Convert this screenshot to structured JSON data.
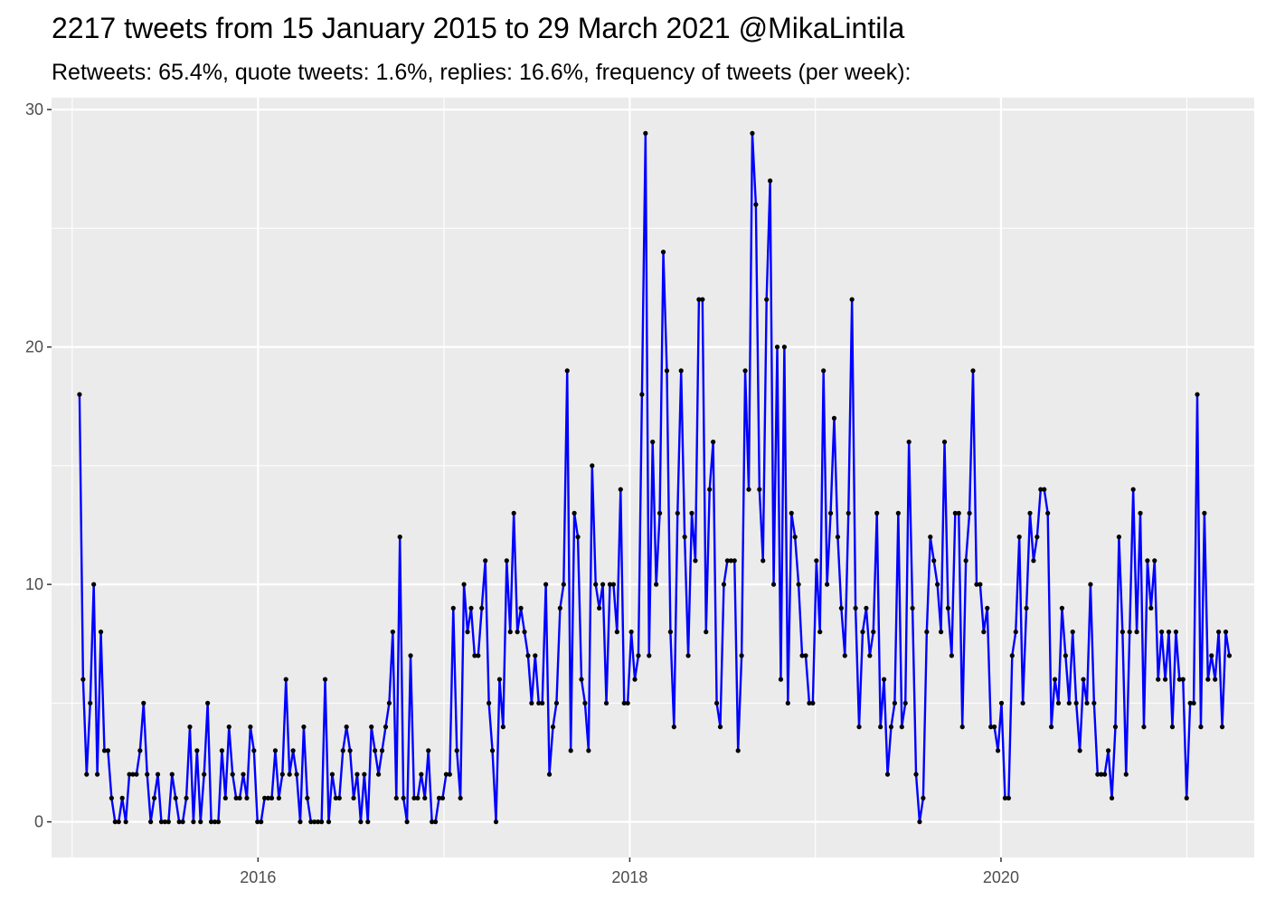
{
  "chart_data": {
    "type": "line",
    "title": "2217 tweets from 15 January 2015 to 29 March 2021 @MikaLintila",
    "subtitle": "Retweets: 65.4%, quote tweets: 1.6%, replies: 16.6%, frequency of tweets (per week):",
    "xlabel": "",
    "ylabel": "",
    "x_start": "2015-01-15",
    "x_step": "1 week",
    "xlim": [
      "2014-11-21",
      "2021-05-13"
    ],
    "x_ticks": [
      {
        "value": "2016-01-01",
        "label": "2016"
      },
      {
        "value": "2018-01-01",
        "label": "2018"
      },
      {
        "value": "2020-01-01",
        "label": "2020"
      }
    ],
    "ylim": [
      -1.5,
      30.5
    ],
    "y_ticks": [
      0,
      10,
      20,
      30
    ],
    "grid": true,
    "background": "#ebebeb",
    "line_color": "#0000ff",
    "point_color": "#000000",
    "series": [
      {
        "values": [
          18,
          6,
          2,
          5,
          10,
          2,
          8,
          3,
          3,
          1,
          0,
          0,
          1,
          0,
          2,
          2,
          2,
          3,
          5,
          2,
          0,
          1,
          2,
          0,
          0,
          0,
          2,
          1,
          0,
          0,
          1,
          4,
          0,
          3,
          0,
          2,
          5,
          0,
          0,
          0,
          3,
          1,
          4,
          2,
          1,
          1,
          2,
          1,
          4,
          3,
          0,
          0,
          1,
          1,
          1,
          3,
          1,
          2,
          6,
          2,
          3,
          2,
          0,
          4,
          1,
          0,
          0,
          0,
          0,
          6,
          0,
          2,
          1,
          1,
          3,
          4,
          3,
          1,
          2,
          0,
          2,
          0,
          4,
          3,
          2,
          3,
          4,
          5,
          8,
          1,
          12,
          1,
          0,
          7,
          1,
          1,
          2,
          1,
          3,
          0,
          0,
          1,
          1,
          2,
          2,
          9,
          3,
          1,
          10,
          8,
          9,
          7,
          7,
          9,
          11,
          5,
          3,
          0,
          6,
          4,
          11,
          8,
          13,
          8,
          9,
          8,
          7,
          5,
          7,
          5,
          5,
          10,
          2,
          4,
          5,
          9,
          10,
          19,
          3,
          13,
          12,
          6,
          5,
          3,
          15,
          10,
          9,
          10,
          5,
          10,
          10,
          8,
          14,
          5,
          5,
          8,
          6,
          7,
          18,
          29,
          7,
          16,
          10,
          13,
          24,
          19,
          8,
          4,
          13,
          19,
          12,
          7,
          13,
          11,
          22,
          22,
          8,
          14,
          16,
          5,
          4,
          10,
          11,
          11,
          11,
          3,
          7,
          19,
          14,
          29,
          26,
          14,
          11,
          22,
          27,
          10,
          20,
          6,
          20,
          5,
          13,
          12,
          10,
          7,
          7,
          5,
          5,
          11,
          8,
          19,
          10,
          13,
          17,
          12,
          9,
          7,
          13,
          22,
          9,
          4,
          8,
          9,
          7,
          8,
          13,
          4,
          6,
          2,
          4,
          5,
          13,
          4,
          5,
          16,
          9,
          2,
          0,
          1,
          8,
          12,
          11,
          10,
          8,
          16,
          9,
          7,
          13,
          13,
          4,
          11,
          13,
          19,
          10,
          10,
          8,
          9,
          4,
          4,
          3,
          5,
          1,
          1,
          7,
          8,
          12,
          5,
          9,
          13,
          11,
          12,
          14,
          14,
          13,
          4,
          6,
          5,
          9,
          7,
          5,
          8,
          5,
          3,
          6,
          5,
          10,
          5,
          2,
          2,
          2,
          3,
          1,
          4,
          12,
          8,
          2,
          8,
          14,
          8,
          13,
          4,
          11,
          9,
          11,
          6,
          8,
          6,
          8,
          4,
          8,
          6,
          6,
          1,
          5,
          5,
          18,
          4,
          13,
          6,
          7,
          6,
          8,
          4,
          8,
          7
        ]
      }
    ]
  }
}
